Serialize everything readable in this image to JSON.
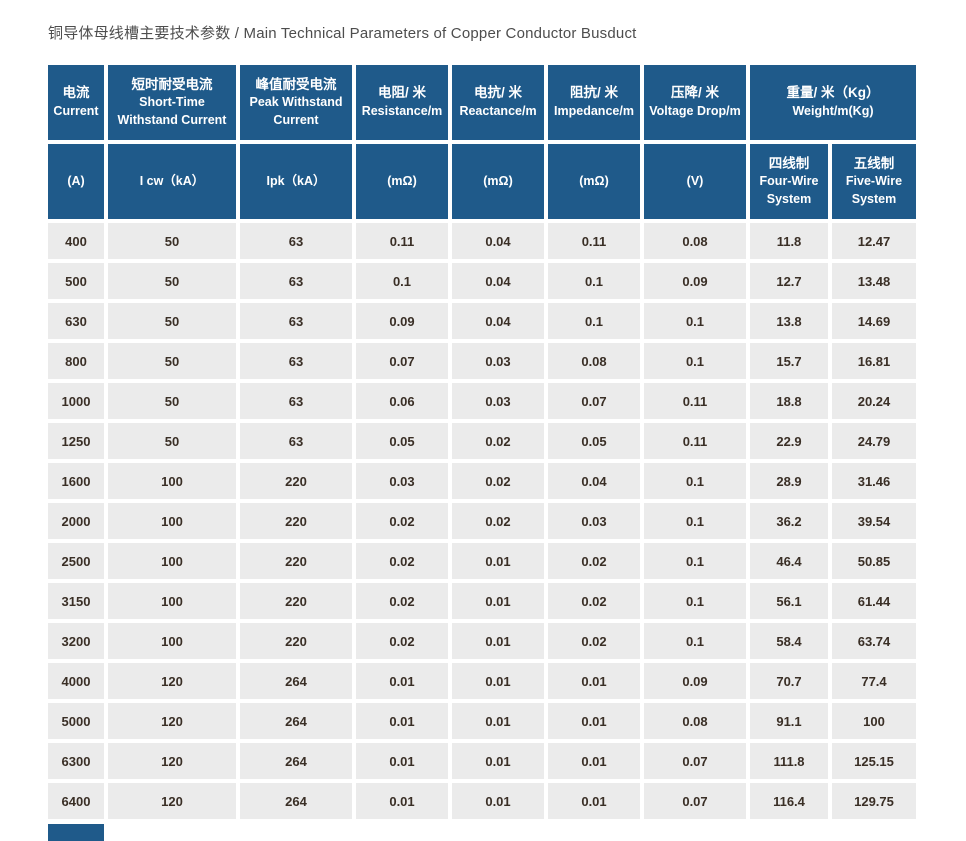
{
  "page": {
    "title": "铜导体母线槽主要技术参数 / Main Technical Parameters of Copper Conductor Busduct"
  },
  "colors": {
    "header_bg": "#1f5a8a",
    "cell_bg": "#ebebeb",
    "header_text": "#ffffff",
    "value_text": "#3a2f26",
    "title_text": "#4d4d4d"
  },
  "table": {
    "header_row1": [
      {
        "cn": "电流",
        "en": "Current"
      },
      {
        "cn": "短时耐受电流",
        "en": "Short-Time Withstand Current"
      },
      {
        "cn": "峰值耐受电流",
        "en": "Peak Withstand Current"
      },
      {
        "cn": "电阻/ 米",
        "en": "Resistance/m"
      },
      {
        "cn": "电抗/ 米",
        "en": "Reactance/m"
      },
      {
        "cn": "阻抗/ 米",
        "en": "Impedance/m"
      },
      {
        "cn": "压降/ 米",
        "en": "Voltage Drop/m"
      },
      {
        "cn": "重量/ 米（Kg）",
        "en": "Weight/m(Kg)"
      }
    ],
    "header_row2": [
      {
        "line1": "(A)"
      },
      {
        "line1": "I cw（kA）"
      },
      {
        "line1": "Ipk（kA）"
      },
      {
        "line1": "(mΩ)"
      },
      {
        "line1": "(mΩ)"
      },
      {
        "line1": "(mΩ)"
      },
      {
        "line1": "(V)"
      },
      {
        "cn": "四线制",
        "en1": "Four-Wire",
        "en2": "System"
      },
      {
        "cn": "五线制",
        "en1": "Five-Wire",
        "en2": "System"
      }
    ],
    "rows": [
      [
        "400",
        "50",
        "63",
        "0.11",
        "0.04",
        "0.11",
        "0.08",
        "11.8",
        "12.47"
      ],
      [
        "500",
        "50",
        "63",
        "0.1",
        "0.04",
        "0.1",
        "0.09",
        "12.7",
        "13.48"
      ],
      [
        "630",
        "50",
        "63",
        "0.09",
        "0.04",
        "0.1",
        "0.1",
        "13.8",
        "14.69"
      ],
      [
        "800",
        "50",
        "63",
        "0.07",
        "0.03",
        "0.08",
        "0.1",
        "15.7",
        "16.81"
      ],
      [
        "1000",
        "50",
        "63",
        "0.06",
        "0.03",
        "0.07",
        "0.11",
        "18.8",
        "20.24"
      ],
      [
        "1250",
        "50",
        "63",
        "0.05",
        "0.02",
        "0.05",
        "0.11",
        "22.9",
        "24.79"
      ],
      [
        "1600",
        "100",
        "220",
        "0.03",
        "0.02",
        "0.04",
        "0.1",
        "28.9",
        "31.46"
      ],
      [
        "2000",
        "100",
        "220",
        "0.02",
        "0.02",
        "0.03",
        "0.1",
        "36.2",
        "39.54"
      ],
      [
        "2500",
        "100",
        "220",
        "0.02",
        "0.01",
        "0.02",
        "0.1",
        "46.4",
        "50.85"
      ],
      [
        "3150",
        "100",
        "220",
        "0.02",
        "0.01",
        "0.02",
        "0.1",
        "56.1",
        "61.44"
      ],
      [
        "3200",
        "100",
        "220",
        "0.02",
        "0.01",
        "0.02",
        "0.1",
        "58.4",
        "63.74"
      ],
      [
        "4000",
        "120",
        "264",
        "0.01",
        "0.01",
        "0.01",
        "0.09",
        "70.7",
        "77.4"
      ],
      [
        "5000",
        "120",
        "264",
        "0.01",
        "0.01",
        "0.01",
        "0.08",
        "91.1",
        "100"
      ],
      [
        "6300",
        "120",
        "264",
        "0.01",
        "0.01",
        "0.01",
        "0.07",
        "111.8",
        "125.15"
      ],
      [
        "6400",
        "120",
        "264",
        "0.01",
        "0.01",
        "0.01",
        "0.07",
        "116.4",
        "129.75"
      ]
    ]
  }
}
